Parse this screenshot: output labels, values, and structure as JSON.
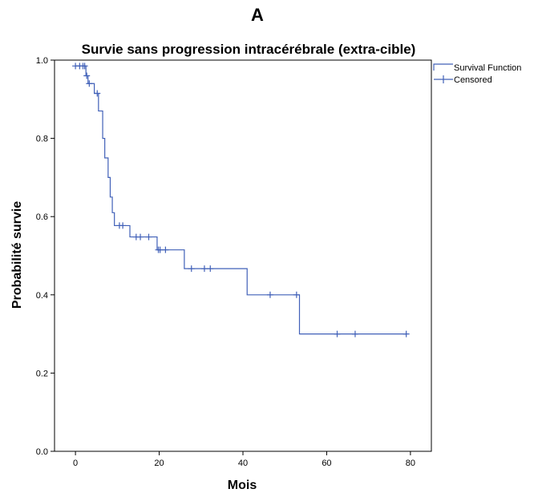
{
  "chart_data": {
    "type": "line",
    "panel_label": "A",
    "title": "Survie sans progression intracérébrale (extra-cible)",
    "xlabel": "Mois",
    "ylabel": "Probabilité survie",
    "xlim": [
      -5,
      85
    ],
    "ylim": [
      0,
      1
    ],
    "x_ticks": [
      0,
      20,
      40,
      60,
      80
    ],
    "y_ticks": [
      0.0,
      0.2,
      0.4,
      0.6,
      0.8,
      1.0
    ],
    "x_tick_labels": [
      "0",
      "20",
      "40",
      "60",
      "80"
    ],
    "y_tick_labels": [
      "0.0",
      "0.2",
      "0.4",
      "0.6",
      "0.8",
      "1.0"
    ],
    "grid": false,
    "legend_position": "outside-top-right",
    "colors": {
      "line": "#4060b8",
      "axis": "#000000"
    },
    "series": [
      {
        "name": "Survival Function",
        "step": true,
        "x": [
          0,
          2.5,
          3,
          4.5,
          5.5,
          6.5,
          7,
          7.8,
          8.3,
          8.8,
          9.3,
          13,
          19.5,
          26,
          41,
          53.5,
          79
        ],
        "y": [
          0.985,
          0.96,
          0.94,
          0.915,
          0.87,
          0.8,
          0.75,
          0.7,
          0.65,
          0.61,
          0.577,
          0.548,
          0.515,
          0.467,
          0.4,
          0.3,
          0.3
        ]
      },
      {
        "name": "Censored",
        "marker": "plus",
        "x": [
          0,
          1,
          1.8,
          2.2,
          2.7,
          3.3,
          5.2,
          10.5,
          11.3,
          14.5,
          15.5,
          17.5,
          19.8,
          20.2,
          21.5,
          27.7,
          30.8,
          32.2,
          46.5,
          52.8,
          62.5,
          66.8,
          79
        ],
        "y": [
          0.985,
          0.985,
          0.985,
          0.985,
          0.96,
          0.94,
          0.915,
          0.577,
          0.577,
          0.548,
          0.548,
          0.548,
          0.515,
          0.515,
          0.515,
          0.467,
          0.467,
          0.467,
          0.4,
          0.4,
          0.3,
          0.3,
          0.3
        ]
      }
    ]
  }
}
